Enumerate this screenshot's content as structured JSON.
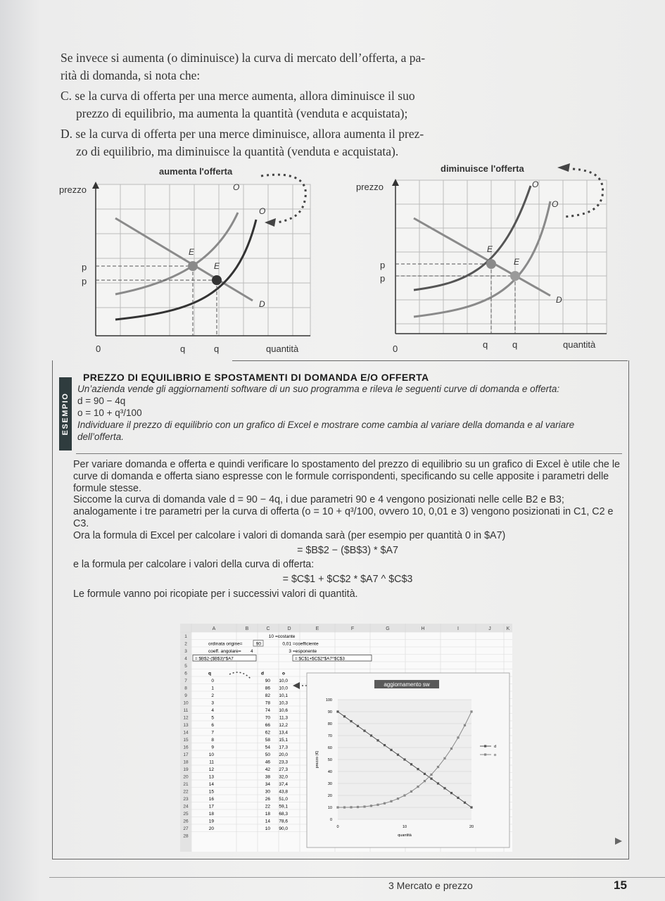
{
  "intro": {
    "line1": "Se invece si aumenta (o diminuisce) la curva di mercato dell’offerta, a pa-",
    "line2": "rità di domanda, si nota che:",
    "itemC_line1": "C. se la curva di offerta per una merce aumenta, allora diminuisce il suo",
    "itemC_line2": "prezzo di equilibrio, ma aumenta la quantità (venduta e acquistata);",
    "itemD_line1": "D. se la curva di offerta per una merce diminuisce, allora aumenta il prez-",
    "itemD_line2": "zo di equilibrio, ma diminuisce la quantità (venduta e acquistata)."
  },
  "figures": [
    {
      "title": "aumenta l'offerta",
      "ylabel": "prezzo",
      "xlabel": "quantità",
      "origin": "0",
      "price_labels": [
        "p",
        "p"
      ],
      "qty_labels": [
        "q",
        "q"
      ],
      "curve_labels": [
        "O",
        "O",
        "E",
        "E",
        "D"
      ]
    },
    {
      "title": "diminuisce l'offerta",
      "ylabel": "prezzo",
      "xlabel": "quantità",
      "origin": "0",
      "price_labels": [
        "p",
        "p"
      ],
      "qty_labels": [
        "q",
        "q"
      ],
      "curve_labels": [
        "O",
        "O",
        "E",
        "E",
        "D"
      ]
    }
  ],
  "example": {
    "tab": "ESEMPIO",
    "title": "PREZZO DI EQUILIBRIO E SPOSTAMENTI DI DOMANDA E/O OFFERTA",
    "statement": "Un’azienda vende gli aggiornamenti software di un suo programma e rileva le seguenti curve di domanda e offerta:",
    "eq_d": "d = 90 − 4q",
    "eq_o": "o = 10 + q³/100",
    "task": "Individuare il prezzo di equilibrio con un grafico di Excel e mostrare come cambia al variare della domanda e al variare dell’offerta."
  },
  "body": {
    "p1": "Per variare domanda e offerta e quindi verificare lo spostamento del prezzo di equilibrio su un grafico di Excel è utile che le curve di domanda e offerta siano espresse con le formule corrispondenti, specificando su celle apposite i parametri delle formule stesse.",
    "p2": "Siccome la curva di domanda vale d = 90 − 4q, i due parametri 90 e 4 vengono posizionati nelle celle B2 e B3; analogamente i tre parametri per la curva di offerta (o = 10 + q³/100, ovvero 10, 0,01 e 3) vengono posizionati in C1, C2 e C3.",
    "p3": "Ora la formula di Excel per calcolare i valori di domanda sarà (per esempio per quantità 0 in $A7)",
    "formula_d": "= $B$2 − ($B$3) * $A7",
    "p4": "e la formula per calcolare i valori della curva di offerta:",
    "formula_o": "= $C$1 + $C$2 * $A7 ^ $C$3",
    "p5": "Le formule vanno poi ricopiate per i successivi valori di quantità."
  },
  "spreadsheet": {
    "columns": [
      "A",
      "B",
      "C",
      "D",
      "E",
      "F",
      "G",
      "H",
      "I",
      "J",
      "K"
    ],
    "row1_c": "10",
    "row1_note": "=costante",
    "row2_a": "ordinata origine=",
    "row2_b": "90",
    "row2_c": "0,01",
    "row2_note": "=coefficiente",
    "row3_a": "coeff. angolare=",
    "row3_b": "4",
    "row3_c": "3",
    "row3_note": "=esponente",
    "row4_formula_d": "= $B$2-($B$3)*$A7",
    "row4_formula_o": "= $C$1+$C$2*$A7^$C$3",
    "header_q": "q",
    "header_d": "d",
    "header_o": "o",
    "q": [
      0,
      1,
      2,
      3,
      4,
      5,
      6,
      7,
      8,
      9,
      10,
      11,
      12,
      13,
      14,
      15,
      16,
      17,
      18,
      19,
      20
    ],
    "d": [
      90,
      86,
      82,
      78,
      74,
      70,
      66,
      62,
      58,
      54,
      50,
      46,
      42,
      38,
      34,
      30,
      26,
      22,
      18,
      14,
      10
    ],
    "o": [
      "10,0",
      "10,0",
      "10,1",
      "10,3",
      "10,6",
      "11,3",
      "12,2",
      "13,4",
      "15,1",
      "17,3",
      "20,0",
      "23,3",
      "27,3",
      "32,0",
      "37,4",
      "43,8",
      "51,0",
      "59,1",
      "68,3",
      "78,6",
      "90,0"
    ]
  },
  "chart_data": {
    "type": "line",
    "title": "aggiornamento sw",
    "xlabel": "quantità",
    "ylabel": "prezzo (€)",
    "x": [
      0,
      1,
      2,
      3,
      4,
      5,
      6,
      7,
      8,
      9,
      10,
      11,
      12,
      13,
      14,
      15,
      16,
      17,
      18,
      19,
      20
    ],
    "series": [
      {
        "name": "d",
        "values": [
          90,
          86,
          82,
          78,
          74,
          70,
          66,
          62,
          58,
          54,
          50,
          46,
          42,
          38,
          34,
          30,
          26,
          22,
          18,
          14,
          10
        ]
      },
      {
        "name": "o",
        "values": [
          10,
          10,
          10.1,
          10.3,
          10.6,
          11.3,
          12.2,
          13.4,
          15.1,
          17.3,
          20,
          23.3,
          27.3,
          32,
          37.4,
          43.8,
          51,
          59.1,
          68.3,
          78.6,
          90
        ]
      }
    ],
    "xticks": [
      0,
      10,
      20
    ],
    "yticks": [
      0,
      10,
      20,
      30,
      40,
      50,
      60,
      70,
      80,
      90,
      100
    ],
    "xlim": [
      0,
      20
    ],
    "ylim": [
      0,
      100
    ],
    "grid": true,
    "legend": "right"
  },
  "footer": {
    "chapter": "3 Mercato e prezzo",
    "page": "15"
  },
  "colors": {
    "ink": "#2b2b2b",
    "curve_dark": "#333333",
    "curve_gray": "#8a8a8a",
    "tab_bg": "#2f3c3e",
    "chart_title_bg": "#5a5a5a"
  }
}
